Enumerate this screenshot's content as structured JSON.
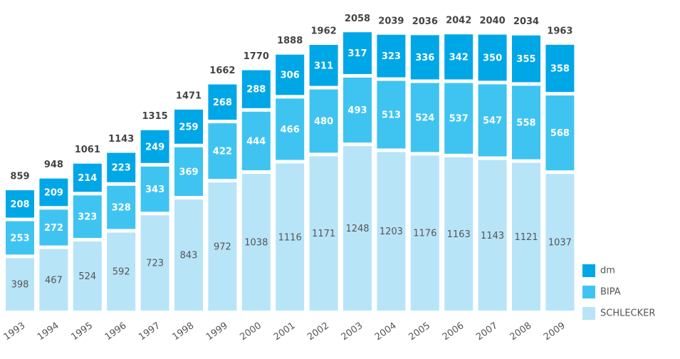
{
  "chart_data": {
    "type": "stacked_bar",
    "categories": [
      "1993",
      "1994",
      "1995",
      "1996",
      "1997",
      "1998",
      "1999",
      "2000",
      "2001",
      "2002",
      "2003",
      "2004",
      "2005",
      "2006",
      "2007",
      "2008",
      "2009"
    ],
    "series": [
      {
        "name": "SCHLECKER",
        "color": "#b8e4f8",
        "values": [
          398,
          467,
          524,
          592,
          723,
          843,
          972,
          1038,
          1116,
          1171,
          1248,
          1203,
          1176,
          1163,
          1143,
          1121,
          1037
        ]
      },
      {
        "name": "BIPA",
        "color": "#3fc4f1",
        "values": [
          253,
          272,
          323,
          328,
          343,
          369,
          422,
          444,
          466,
          480,
          493,
          513,
          524,
          537,
          547,
          558,
          568
        ]
      },
      {
        "name": "dm",
        "color": "#00a7e7",
        "values": [
          208,
          209,
          214,
          223,
          249,
          259,
          268,
          288,
          306,
          311,
          317,
          323,
          336,
          342,
          350,
          355,
          358
        ]
      }
    ],
    "totals": [
      859,
      948,
      1061,
      1143,
      1315,
      1471,
      1662,
      1770,
      1888,
      1962,
      2058,
      2039,
      2036,
      2042,
      2040,
      2034,
      1963
    ],
    "legend": "right"
  }
}
